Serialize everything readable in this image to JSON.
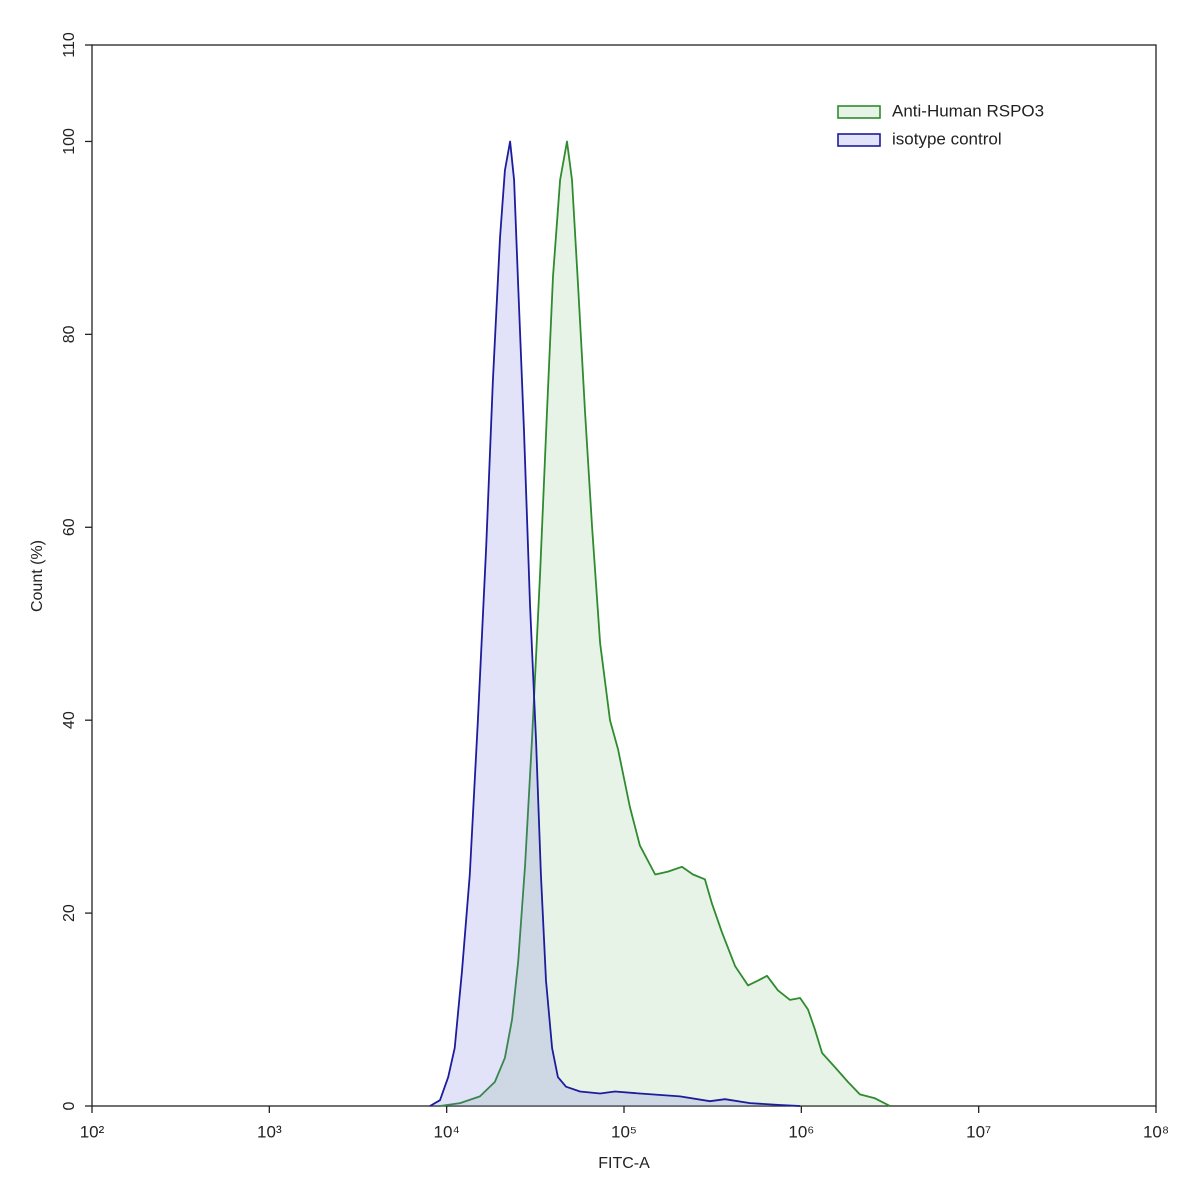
{
  "chart_data": {
    "type": "histogram-overlay",
    "xlabel": "FITC-A",
    "ylabel": "Count (%)",
    "xscale": "log",
    "xlim": [
      100,
      100000000
    ],
    "xticks": [
      {
        "value": 100,
        "label": "10²"
      },
      {
        "value": 1000,
        "label": "10³"
      },
      {
        "value": 10000,
        "label": "10⁴"
      },
      {
        "value": 100000,
        "label": "10⁵"
      },
      {
        "value": 1000000,
        "label": "10⁶"
      },
      {
        "value": 10000000,
        "label": "10⁷"
      },
      {
        "value": 100000000,
        "label": "10⁸"
      }
    ],
    "ylim": [
      0,
      110
    ],
    "yticks": [
      0,
      20,
      40,
      60,
      80,
      100,
      110
    ],
    "legend": "upper right",
    "series": [
      {
        "name": "Anti-Human RSPO3",
        "color": "#2e8b2e",
        "fill": "rgba(120,190,120,0.18)",
        "x": [
          9170,
          11900,
          15400,
          18700,
          21300,
          23400,
          25300,
          27700,
          30300,
          33600,
          36800,
          39800,
          43600,
          47700,
          50900,
          55100,
          60300,
          66100,
          73300,
          83400,
          92500,
          108000,
          123000,
          150000,
          177000,
          212000,
          245000,
          286000,
          313000,
          357000,
          423000,
          500000,
          570000,
          640000,
          738000,
          863000,
          984000,
          1090000,
          1190000,
          1310000,
          1550000,
          1830000,
          2140000,
          2600000,
          3160000
        ],
        "values": [
          0,
          0.3,
          1,
          2.5,
          5,
          9,
          15,
          25,
          38,
          55,
          72,
          86,
          96,
          100,
          96,
          85,
          72,
          60,
          48,
          40,
          37,
          31,
          27,
          24,
          24.3,
          24.8,
          24,
          23.5,
          21,
          18,
          14.5,
          12.5,
          13,
          13.5,
          12,
          11,
          11.2,
          10,
          8,
          5.5,
          4,
          2.5,
          1.2,
          0.8,
          0
        ]
      },
      {
        "name": "isotype control",
        "color": "#1c1c9c",
        "fill": "rgba(110,110,220,0.2)",
        "x": [
          8050,
          9170,
          10200,
          11100,
          12200,
          13500,
          15000,
          16700,
          18200,
          20000,
          21300,
          22800,
          24000,
          25300,
          27300,
          29500,
          31900,
          34000,
          36300,
          39300,
          42400,
          47100,
          56500,
          73300,
          89000,
          123000,
          207000,
          305000,
          371000,
          514000,
          759000,
          984000
        ],
        "values": [
          0,
          0.6,
          3,
          6,
          14,
          24,
          40,
          58,
          75,
          90,
          97,
          100,
          96,
          85,
          70,
          52,
          38,
          24,
          13,
          6,
          3,
          2,
          1.5,
          1.3,
          1.5,
          1.3,
          1,
          0.5,
          0.7,
          0.3,
          0.1,
          0
        ]
      }
    ]
  }
}
